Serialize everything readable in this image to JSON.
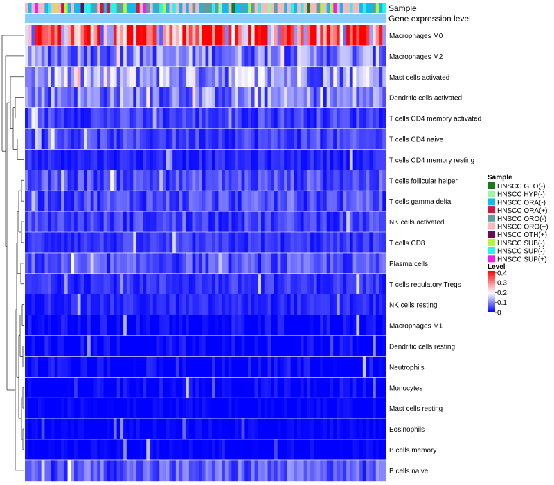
{
  "chart_data": {
    "type": "heatmap",
    "annotation_tracks": [
      "Sample",
      "Gene expression level"
    ],
    "rows": [
      "Macrophages M0",
      "Macrophages M2",
      "Mast cells activated",
      "Dendritic cells activated",
      "T cells CD4 memory activated",
      "T cells CD4 naive",
      "T cells CD4 memory resting",
      "T cells follicular helper",
      "T cells gamma delta",
      "NK cells activated",
      "T cells CD8",
      "Plasma cells",
      "T cells regulatory  Tregs",
      "NK cells resting",
      "Macrophages M1",
      "Dendritic cells resting",
      "Neutrophils",
      "Monocytes",
      "Mast cells resting",
      "Eosinophils",
      "B cells memory",
      "B cells naive"
    ],
    "row_mean_levels": [
      0.3,
      0.1,
      0.13,
      0.1,
      0.05,
      0.05,
      0.03,
      0.06,
      0.06,
      0.05,
      0.04,
      0.06,
      0.04,
      0.03,
      0.02,
      0.02,
      0.02,
      0.02,
      0.01,
      0.01,
      0.01,
      0.07
    ],
    "columns_shown": 110,
    "sample_legend": {
      "title": "Sample",
      "entries": [
        {
          "label": "HNSCC GLO(-)",
          "color": "#1a7a1a"
        },
        {
          "label": "HNSCC HYP(-)",
          "color": "#9ff59f"
        },
        {
          "label": "HNSCC ORA(-)",
          "color": "#12b8ee"
        },
        {
          "label": "HNSCC ORA(+)",
          "color": "#d0163c"
        },
        {
          "label": "HNSCC ORO(-)",
          "color": "#5f9ea0"
        },
        {
          "label": "HNSCC ORO(+)",
          "color": "#fbb6c1"
        },
        {
          "label": "HNSCC OTH(+)",
          "color": "#6a0a5a"
        },
        {
          "label": "HNSCC SUB(-)",
          "color": "#b6f53a"
        },
        {
          "label": "HNSCC SUP(-)",
          "color": "#2cf2ec"
        },
        {
          "label": "HNSCC SUP(+)",
          "color": "#ee1ef0"
        }
      ]
    },
    "level_legend": {
      "title": "Level",
      "ticks": [
        "0.4",
        "0.3",
        "0.2",
        "0.1",
        "0"
      ],
      "range": [
        0,
        0.42
      ],
      "low_color": "#0000ff",
      "mid_color": "#ffffff",
      "high_color": "#ff0000"
    },
    "expression_track_color": "#87cefa"
  }
}
